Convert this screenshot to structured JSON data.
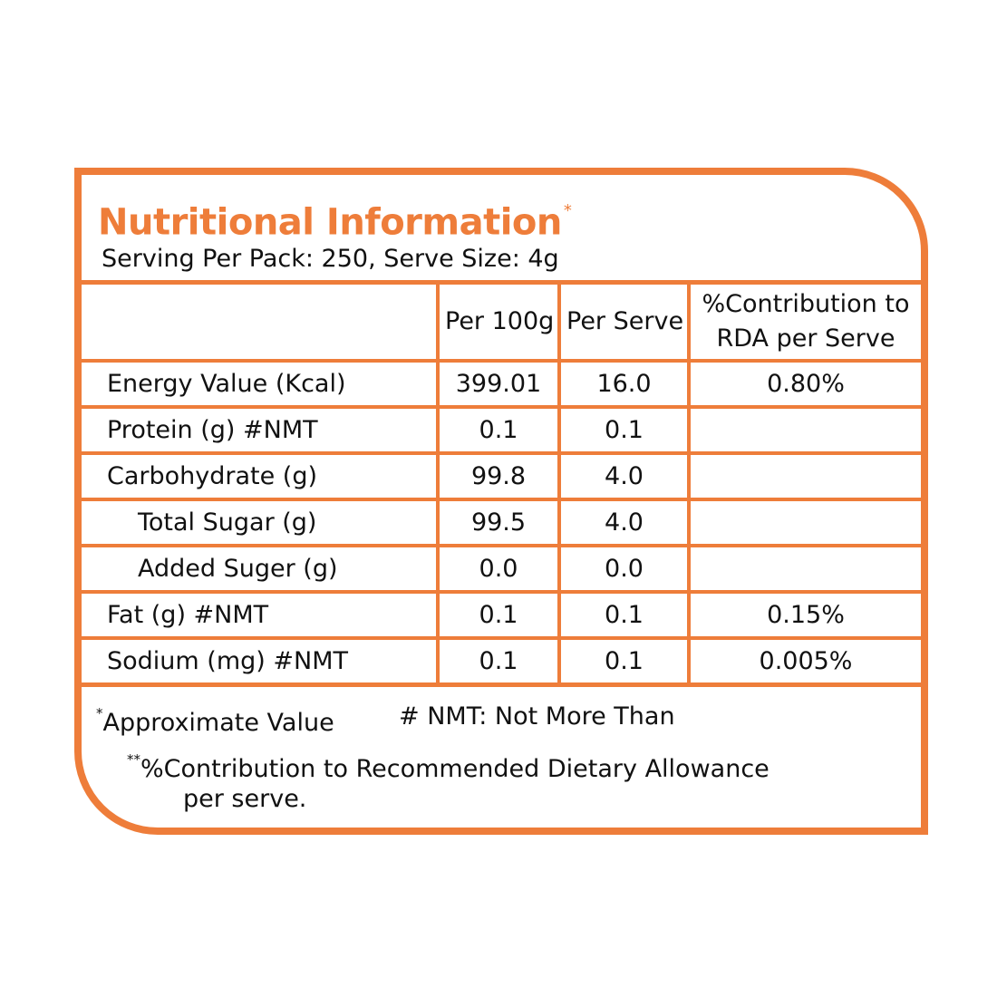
{
  "label": {
    "title": "Nutritional Information",
    "title_mark": "*",
    "serving_info": "Serving Per Pack: 250, Serve Size: 4g",
    "table": {
      "headers": [
        "",
        "Per 100g",
        "Per Serve",
        "%Contribution to RDA per Serve"
      ],
      "rows": [
        {
          "name": "Energy Value (Kcal)",
          "per100": "399.01",
          "perServe": "16.0",
          "rda": "0.80%"
        },
        {
          "name": "Protein (g) #NMT",
          "per100": "0.1",
          "perServe": "0.1",
          "rda": ""
        },
        {
          "name": "Carbohydrate (g)",
          "per100": "99.8",
          "perServe": "4.0",
          "rda": ""
        },
        {
          "name": "Total Sugar (g)",
          "per100": "99.5",
          "perServe": "4.0",
          "rda": ""
        },
        {
          "name": "Added Suger (g)",
          "per100": "0.0",
          "perServe": "0.0",
          "rda": ""
        },
        {
          "name": "Fat (g) #NMT",
          "per100": "0.1",
          "perServe": "0.1",
          "rda": "0.15%"
        },
        {
          "name": "Sodium (mg) #NMT",
          "per100": "0.1",
          "perServe": "0.1",
          "rda": "0.005%"
        }
      ]
    },
    "footnotes": {
      "approx_mark": "*",
      "approx": "Approximate Value",
      "nmt": "# NMT: Not More Than",
      "rda_mark": "**",
      "rda_line1": "%Contribution to Recommended Dietary Allowance",
      "rda_line2": "per serve."
    }
  },
  "colors": {
    "accent": "#ee7d3a",
    "text": "#111111",
    "background": "#ffffff"
  }
}
